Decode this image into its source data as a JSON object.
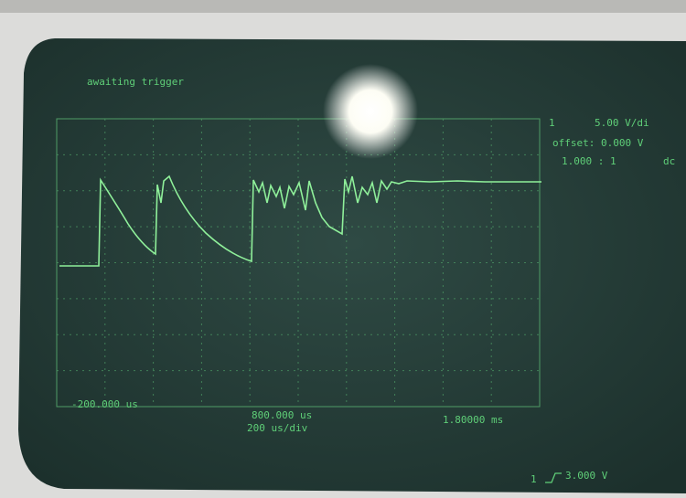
{
  "status": "awaiting trigger",
  "channel": {
    "number": "1",
    "scale": "5.00 V/di",
    "offset": "offset: 0.000 V",
    "probe": "1.000 : 1",
    "coupling": "dc"
  },
  "timebase": {
    "left": "-200.000 us",
    "center": "800.000 us",
    "right": "1.80000 ms",
    "scale": "200 us/div"
  },
  "trigger": {
    "source": "1",
    "level": "3.000 V"
  }
}
